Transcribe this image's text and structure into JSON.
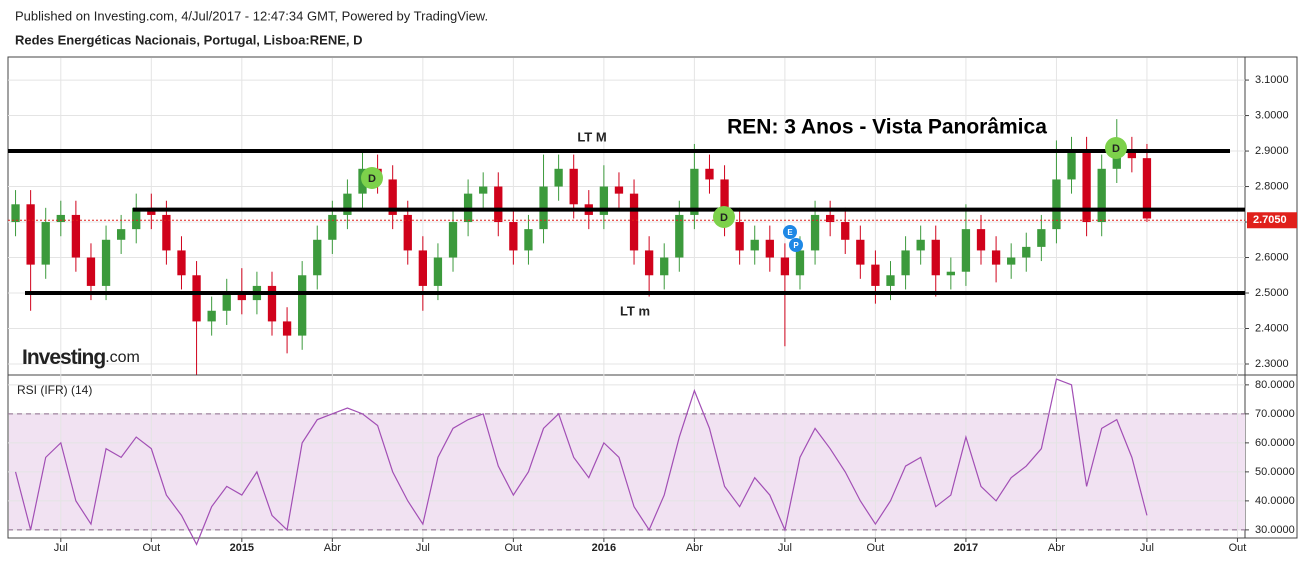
{
  "header": {
    "published": "Published on Investing.com, 4/Jul/2017 - 12:47:34 GMT, Powered by TradingView.",
    "symbol": "Redes Energéticas Nacionais, Portugal, Lisboa:RENE, D"
  },
  "chart_data": [
    {
      "type": "candlestick",
      "title": "REN: 3 Anos - Vista Panorâmica",
      "watermark": {
        "brand": "Investing",
        "suffix": ".com"
      },
      "open": [
        2.7,
        2.75,
        2.58,
        2.7,
        2.72,
        2.6,
        2.52,
        2.65,
        2.68,
        2.74,
        2.72,
        2.62,
        2.55,
        2.42,
        2.45,
        2.5,
        2.48,
        2.52,
        2.42,
        2.38,
        2.55,
        2.65,
        2.72,
        2.78,
        2.85,
        2.82,
        2.72,
        2.62,
        2.52,
        2.6,
        2.7,
        2.78,
        2.8,
        2.7,
        2.62,
        2.68,
        2.8,
        2.85,
        2.75,
        2.72,
        2.8,
        2.78,
        2.62,
        2.55,
        2.6,
        2.72,
        2.85,
        2.82,
        2.7,
        2.62,
        2.65,
        2.6,
        2.55,
        2.62,
        2.72,
        2.7,
        2.65,
        2.58,
        2.52,
        2.55,
        2.62,
        2.65,
        2.55,
        2.56,
        2.68,
        2.62,
        2.58,
        2.6,
        2.63,
        2.68,
        2.82,
        2.9,
        2.7,
        2.85,
        2.9,
        2.88
      ],
      "high": [
        2.79,
        2.79,
        2.74,
        2.76,
        2.76,
        2.64,
        2.69,
        2.72,
        2.78,
        2.78,
        2.76,
        2.66,
        2.59,
        2.49,
        2.54,
        2.57,
        2.56,
        2.56,
        2.46,
        2.59,
        2.69,
        2.76,
        2.82,
        2.9,
        2.89,
        2.86,
        2.76,
        2.66,
        2.64,
        2.74,
        2.82,
        2.84,
        2.84,
        2.74,
        2.72,
        2.89,
        2.89,
        2.89,
        2.79,
        2.86,
        2.84,
        2.82,
        2.66,
        2.64,
        2.76,
        2.92,
        2.89,
        2.86,
        2.74,
        2.69,
        2.69,
        2.64,
        2.66,
        2.76,
        2.76,
        2.74,
        2.69,
        2.62,
        2.59,
        2.66,
        2.69,
        2.69,
        2.6,
        2.75,
        2.72,
        2.66,
        2.64,
        2.67,
        2.72,
        2.93,
        2.94,
        2.94,
        2.89,
        2.99,
        2.94,
        2.92
      ],
      "low": [
        2.66,
        2.45,
        2.54,
        2.66,
        2.56,
        2.48,
        2.48,
        2.61,
        2.64,
        2.68,
        2.58,
        2.51,
        2.27,
        2.38,
        2.41,
        2.44,
        2.44,
        2.38,
        2.33,
        2.34,
        2.51,
        2.61,
        2.68,
        2.74,
        2.78,
        2.68,
        2.58,
        2.45,
        2.48,
        2.56,
        2.66,
        2.74,
        2.66,
        2.58,
        2.58,
        2.64,
        2.76,
        2.71,
        2.68,
        2.68,
        2.74,
        2.58,
        2.49,
        2.51,
        2.56,
        2.68,
        2.78,
        2.66,
        2.58,
        2.58,
        2.56,
        2.35,
        2.51,
        2.58,
        2.66,
        2.61,
        2.54,
        2.47,
        2.48,
        2.51,
        2.58,
        2.49,
        2.51,
        2.52,
        2.58,
        2.53,
        2.54,
        2.56,
        2.59,
        2.64,
        2.78,
        2.66,
        2.66,
        2.81,
        2.84,
        2.7
      ],
      "close": [
        2.75,
        2.58,
        2.7,
        2.72,
        2.6,
        2.52,
        2.65,
        2.68,
        2.74,
        2.72,
        2.62,
        2.55,
        2.42,
        2.45,
        2.5,
        2.48,
        2.52,
        2.42,
        2.38,
        2.55,
        2.65,
        2.72,
        2.78,
        2.85,
        2.82,
        2.72,
        2.62,
        2.52,
        2.6,
        2.7,
        2.78,
        2.8,
        2.7,
        2.62,
        2.68,
        2.8,
        2.85,
        2.75,
        2.72,
        2.8,
        2.78,
        2.62,
        2.55,
        2.6,
        2.72,
        2.85,
        2.82,
        2.7,
        2.62,
        2.65,
        2.6,
        2.55,
        2.62,
        2.72,
        2.7,
        2.65,
        2.58,
        2.52,
        2.55,
        2.62,
        2.65,
        2.55,
        2.56,
        2.68,
        2.62,
        2.58,
        2.6,
        2.63,
        2.68,
        2.82,
        2.9,
        2.7,
        2.85,
        2.9,
        2.88,
        2.71
      ],
      "up_color": "#3c9a3c",
      "down_color": "#d0021b",
      "ylim": [
        2.269,
        3.165
      ],
      "yticks": [
        {
          "value": 2.3,
          "label": "2.3000"
        },
        {
          "value": 2.4,
          "label": "2.4000"
        },
        {
          "value": 2.5,
          "label": "2.5000"
        },
        {
          "value": 2.6,
          "label": "2.6000"
        },
        {
          "value": 2.7,
          "label": "2.7000"
        },
        {
          "value": 2.8,
          "label": "2.8000"
        },
        {
          "value": 2.9,
          "label": "2.9000"
        },
        {
          "value": 3,
          "label": "3.0000"
        },
        {
          "value": 3.1,
          "label": "3.1000"
        }
      ],
      "xlim": [
        0,
        82
      ],
      "xticks": [
        {
          "value": 3.5,
          "label": "Jul"
        },
        {
          "value": 9.5,
          "label": "Out"
        },
        {
          "value": 15.5,
          "label": "2015"
        },
        {
          "value": 21.5,
          "label": "Abr"
        },
        {
          "value": 27.5,
          "label": "Jul"
        },
        {
          "value": 33.5,
          "label": "Out"
        },
        {
          "value": 39.5,
          "label": "2016"
        },
        {
          "value": 45.5,
          "label": "Abr"
        },
        {
          "value": 51.5,
          "label": "Jul"
        },
        {
          "value": 57.5,
          "label": "Out"
        },
        {
          "value": 63.5,
          "label": "2017"
        },
        {
          "value": 69.5,
          "label": "Abr"
        },
        {
          "value": 75.5,
          "label": "Jul"
        },
        {
          "value": 81.5,
          "label": "Out"
        }
      ],
      "grid": true,
      "levels": [
        {
          "value": 2.9,
          "label": "LT M",
          "color": "#2e7d1e"
        },
        {
          "value": 2.735
        },
        {
          "value": 2.5,
          "label": "LT m",
          "color": "#e0201b"
        }
      ],
      "last_price": {
        "value": 2.705,
        "label": "2.7050",
        "color": "#e0201b"
      },
      "events": [
        {
          "label": "D"
        },
        {
          "label": "D"
        },
        {
          "label": "D"
        },
        {
          "label": "E"
        },
        {
          "label": "P"
        }
      ]
    },
    {
      "type": "line",
      "title": "RSI (IFR) (14)",
      "color": "#a24fb5",
      "band_color": "#f1e2f2",
      "values": [
        50,
        30,
        55,
        60,
        40,
        32,
        58,
        55,
        62,
        58,
        42,
        35,
        25,
        38,
        45,
        42,
        50,
        35,
        30,
        60,
        68,
        70,
        72,
        70,
        66,
        50,
        40,
        32,
        55,
        65,
        68,
        70,
        52,
        42,
        50,
        65,
        70,
        55,
        48,
        60,
        55,
        38,
        30,
        42,
        62,
        78,
        65,
        45,
        38,
        48,
        42,
        30,
        55,
        65,
        58,
        50,
        40,
        32,
        40,
        52,
        55,
        38,
        42,
        62,
        45,
        40,
        48,
        52,
        58,
        82,
        80,
        45,
        65,
        68,
        55,
        35
      ],
      "band": [
        30,
        70
      ],
      "ylim": [
        27.2,
        83.4
      ],
      "yticks": [
        {
          "value": 30,
          "label": "30.0000"
        },
        {
          "value": 40,
          "label": "40.0000"
        },
        {
          "value": 50,
          "label": "50.0000"
        },
        {
          "value": 60,
          "label": "60.0000"
        },
        {
          "value": 70,
          "label": "70.0000"
        },
        {
          "value": 80,
          "label": "80.0000"
        }
      ]
    }
  ]
}
